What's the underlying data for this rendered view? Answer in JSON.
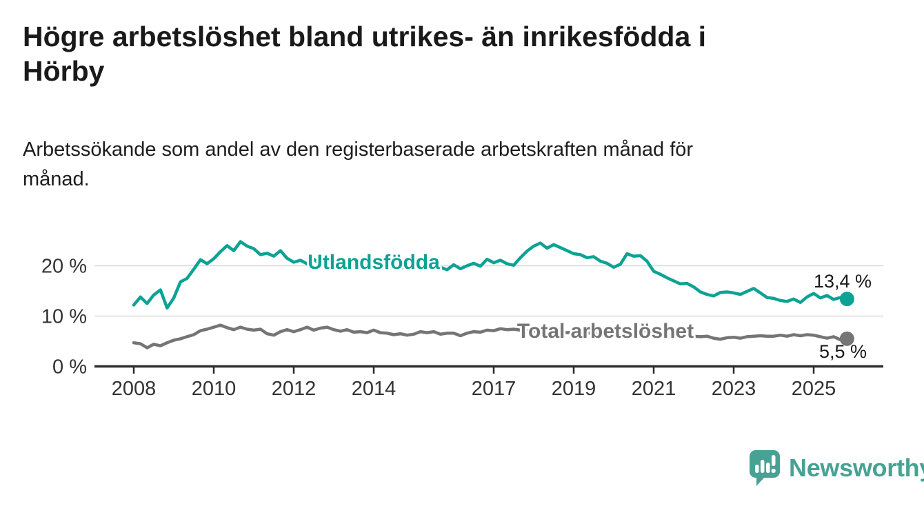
{
  "title": "Högre arbetslöshet bland utrikes- än inrikesfödda i\nHörby",
  "subtitle": "Arbetssökande som andel av den registerbaserade arbetskraften månad för\nmånad.",
  "chart_data": {
    "type": "line",
    "x_start": 2008,
    "x_step_years": 0.16667,
    "xlim": [
      2008,
      2025.83
    ],
    "ylim": [
      0,
      27
    ],
    "grid": "horizontal",
    "x_ticks": [
      "2008",
      "2010",
      "2012",
      "2014",
      "2017",
      "2019",
      "2021",
      "2023",
      "2025"
    ],
    "y_ticks": [
      {
        "value": 0,
        "label": "0 %"
      },
      {
        "value": 10,
        "label": "10 %"
      },
      {
        "value": 20,
        "label": "20 %"
      }
    ],
    "series": [
      {
        "name": "Utlandsfödda",
        "color": "#0da294",
        "end_label": "13,4 %",
        "end_value": 13.4,
        "values": [
          12.2,
          13.8,
          12.5,
          14.2,
          15.2,
          11.6,
          13.6,
          16.8,
          17.5,
          19.3,
          21.2,
          20.4,
          21.4,
          22.8,
          24.0,
          23.0,
          24.8,
          23.9,
          23.4,
          22.2,
          22.5,
          21.9,
          23.0,
          21.5,
          20.7,
          21.1,
          20.4,
          21.3,
          20.3,
          20.9,
          20.1,
          20.5,
          19.8,
          20.2,
          19.6,
          20.0,
          19.8,
          20.3,
          19.6,
          20.1,
          19.5,
          19.9,
          19.5,
          20.0,
          19.4,
          19.9,
          19.7,
          19.2,
          20.2,
          19.4,
          20.0,
          20.5,
          19.9,
          21.3,
          20.6,
          21.1,
          20.4,
          20.1,
          21.6,
          22.9,
          23.9,
          24.5,
          23.5,
          24.2,
          23.6,
          23.0,
          22.4,
          22.2,
          21.6,
          21.8,
          20.9,
          20.5,
          19.7,
          20.3,
          22.4,
          21.9,
          22.0,
          20.9,
          18.9,
          18.3,
          17.6,
          17.0,
          16.4,
          16.5,
          15.8,
          14.8,
          14.3,
          14.0,
          14.7,
          14.8,
          14.6,
          14.3,
          14.9,
          15.5,
          14.6,
          13.7,
          13.5,
          13.1,
          12.9,
          13.4,
          12.7,
          13.8,
          14.5,
          13.6,
          14.1,
          13.3,
          13.7,
          13.4
        ]
      },
      {
        "name": "Total arbetslöshet",
        "color": "#757575",
        "end_label": "5,5 %",
        "end_value": 5.5,
        "values": [
          4.7,
          4.5,
          3.7,
          4.4,
          4.1,
          4.7,
          5.2,
          5.5,
          5.9,
          6.3,
          7.1,
          7.4,
          7.8,
          8.2,
          7.7,
          7.3,
          7.8,
          7.4,
          7.2,
          7.4,
          6.5,
          6.2,
          6.9,
          7.3,
          6.9,
          7.3,
          7.8,
          7.2,
          7.6,
          7.8,
          7.3,
          7.0,
          7.3,
          6.8,
          6.9,
          6.7,
          7.2,
          6.7,
          6.6,
          6.3,
          6.5,
          6.2,
          6.4,
          6.9,
          6.7,
          6.9,
          6.4,
          6.6,
          6.6,
          6.1,
          6.6,
          6.9,
          6.8,
          7.2,
          7.1,
          7.5,
          7.3,
          7.4,
          7.2,
          7.1,
          7.0,
          6.9,
          7.1,
          6.8,
          6.9,
          6.7,
          6.8,
          6.6,
          6.7,
          6.5,
          6.6,
          6.8,
          6.9,
          7.4,
          7.6,
          7.4,
          7.2,
          7.0,
          6.9,
          6.7,
          6.5,
          6.3,
          6.2,
          6.1,
          6.0,
          5.9,
          6.0,
          5.6,
          5.4,
          5.7,
          5.8,
          5.6,
          5.9,
          6.0,
          6.1,
          6.0,
          6.0,
          6.2,
          6.0,
          6.3,
          6.1,
          6.3,
          6.2,
          5.9,
          5.6,
          5.9,
          5.3,
          5.5
        ]
      }
    ],
    "axis_color": "#2d2d2d",
    "grid_color": "#d9d9d9",
    "tick_text_color": "#333333",
    "value_label_color": "#1a1a1a"
  },
  "logo": {
    "text": "Newsworthy",
    "color": "#47a294"
  }
}
